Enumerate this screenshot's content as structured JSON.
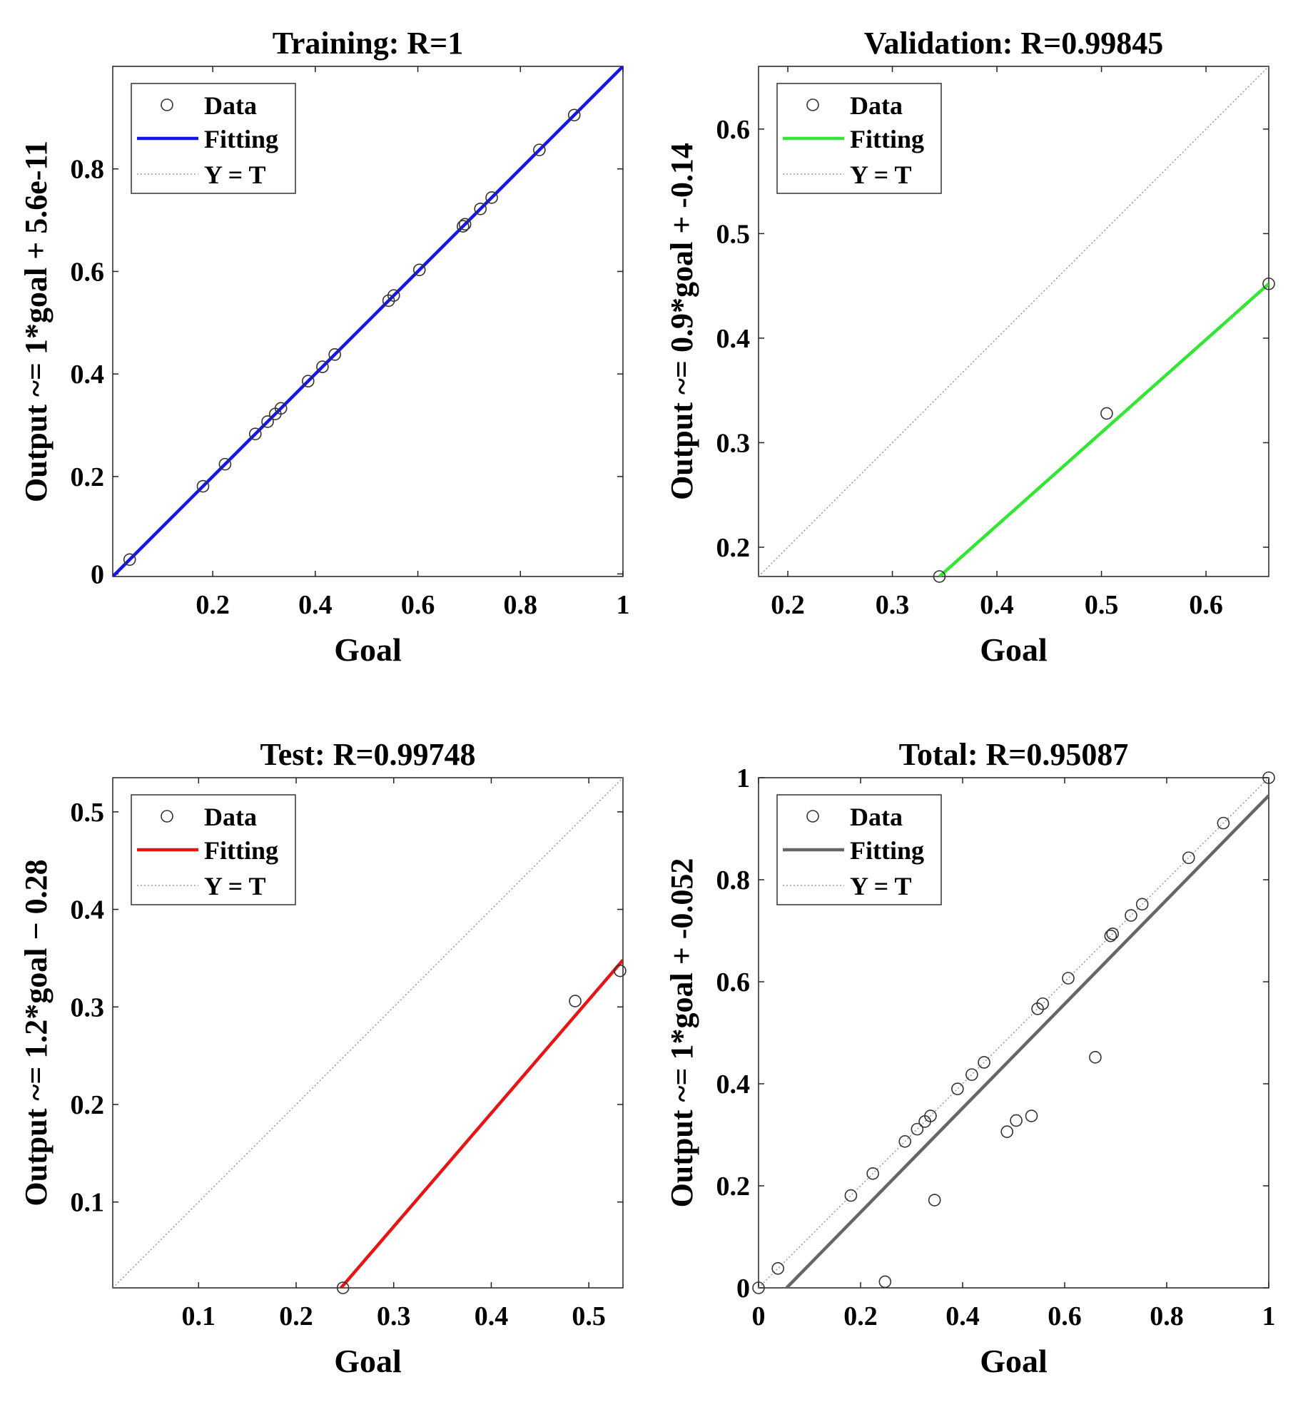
{
  "chart_data": [
    {
      "type": "scatter",
      "title": "Training: R=1",
      "xlabel": "Goal",
      "ylabel": "Output ~= 1*goal + 5.6e-11",
      "xlim": [
        0.005,
        1
      ],
      "ylim": [
        0.005,
        1
      ],
      "xticks": [
        0.2,
        0.4,
        0.6,
        0.8,
        1
      ],
      "xtick_labels": [
        "0.2",
        "0.4",
        "0.6",
        "0.8",
        "1"
      ],
      "yticks": [
        0.01,
        0.2,
        0.4,
        0.6,
        0.8
      ],
      "ytick_labels": [
        "0",
        "0.2",
        "0.4",
        "0.6",
        "0.8"
      ],
      "fit_color": "#1515e6",
      "fit_line": {
        "x": [
          0.005,
          1
        ],
        "y": [
          0.005,
          1
        ]
      },
      "reference_line": {
        "x": [
          0.005,
          1
        ],
        "y": [
          0.005,
          1
        ]
      },
      "points": {
        "x": [
          0.038,
          0.181,
          0.224,
          0.283,
          0.307,
          0.322,
          0.333,
          0.386,
          0.414,
          0.438,
          0.543,
          0.553,
          0.603,
          0.688,
          0.692,
          0.722,
          0.744,
          0.837,
          0.905
        ],
        "y": [
          0.038,
          0.181,
          0.224,
          0.283,
          0.307,
          0.322,
          0.333,
          0.386,
          0.414,
          0.438,
          0.543,
          0.553,
          0.603,
          0.688,
          0.692,
          0.722,
          0.744,
          0.837,
          0.905
        ]
      },
      "legend": {
        "placement": "top-left",
        "entries": [
          "Data",
          "Fitting",
          "Y = T"
        ]
      }
    },
    {
      "type": "scatter",
      "title": "Validation: R=0.99845",
      "xlabel": "Goal",
      "ylabel": "Output ~= 0.9*goal + -0.14",
      "xlim": [
        0.172,
        0.66
      ],
      "ylim": [
        0.172,
        0.66
      ],
      "xticks": [
        0.2,
        0.3,
        0.4,
        0.5,
        0.6
      ],
      "xtick_labels": [
        "0.2",
        "0.3",
        "0.4",
        "0.5",
        "0.6"
      ],
      "yticks": [
        0.2,
        0.3,
        0.4,
        0.5,
        0.6
      ],
      "ytick_labels": [
        "0.2",
        "0.3",
        "0.4",
        "0.5",
        "0.6"
      ],
      "fit_color": "#33e633",
      "fit_line": {
        "x": [
          0.345,
          0.66
        ],
        "y": [
          0.172,
          0.452
        ]
      },
      "reference_line": {
        "x": [
          0.172,
          0.66
        ],
        "y": [
          0.172,
          0.66
        ]
      },
      "points": {
        "x": [
          0.345,
          0.505,
          0.66
        ],
        "y": [
          0.172,
          0.328,
          0.452
        ]
      },
      "legend": {
        "placement": "top-left",
        "entries": [
          "Data",
          "Fitting",
          "Y = T"
        ]
      }
    },
    {
      "type": "scatter",
      "title": "Test: R=0.99748",
      "xlabel": "Goal",
      "ylabel": "Output ~= 1.2*goal − 0.28",
      "xlim": [
        0.012,
        0.535
      ],
      "ylim": [
        0.012,
        0.535
      ],
      "xticks": [
        0.1,
        0.2,
        0.3,
        0.4,
        0.5
      ],
      "xtick_labels": [
        "0.1",
        "0.2",
        "0.3",
        "0.4",
        "0.5"
      ],
      "yticks": [
        0.1,
        0.2,
        0.3,
        0.4,
        0.5
      ],
      "ytick_labels": [
        "0.1",
        "0.2",
        "0.3",
        "0.4",
        "0.5"
      ],
      "fit_color": "#e61515",
      "fit_line": {
        "x": [
          0.246,
          0.535
        ],
        "y": [
          0.012,
          0.348
        ]
      },
      "reference_line": {
        "x": [
          0.012,
          0.535
        ],
        "y": [
          0.012,
          0.535
        ]
      },
      "points": {
        "x": [
          0.248,
          0.486,
          0.532
        ],
        "y": [
          0.012,
          0.306,
          0.337
        ]
      },
      "legend": {
        "placement": "top-left",
        "entries": [
          "Data",
          "Fitting",
          "Y = T"
        ]
      }
    },
    {
      "type": "scatter",
      "title": "Total: R=0.95087",
      "xlabel": "Goal",
      "ylabel": "Output ~= 1*goal + -0.052",
      "xlim": [
        0,
        1
      ],
      "ylim": [
        0,
        1
      ],
      "xticks": [
        0,
        0.2,
        0.4,
        0.6,
        0.8,
        1
      ],
      "xtick_labels": [
        "0",
        "0.2",
        "0.4",
        "0.6",
        "0.8",
        "1"
      ],
      "yticks": [
        0,
        0.2,
        0.4,
        0.6,
        0.8,
        1
      ],
      "ytick_labels": [
        "0",
        "0.2",
        "0.4",
        "0.6",
        "0.8",
        "1"
      ],
      "fit_color": "#666666",
      "fit_line": {
        "x": [
          0.055,
          1
        ],
        "y": [
          0,
          0.965
        ]
      },
      "reference_line": {
        "x": [
          0,
          1
        ],
        "y": [
          0,
          1
        ]
      },
      "points": {
        "x": [
          0,
          0.038,
          0.181,
          0.224,
          0.248,
          0.287,
          0.311,
          0.326,
          0.337,
          0.345,
          0.39,
          0.418,
          0.442,
          0.487,
          0.505,
          0.535,
          0.547,
          0.557,
          0.607,
          0.66,
          0.69,
          0.694,
          0.73,
          0.752,
          0.843,
          0.911,
          1.0
        ],
        "y": [
          0,
          0.038,
          0.181,
          0.224,
          0.012,
          0.287,
          0.311,
          0.326,
          0.337,
          0.172,
          0.39,
          0.418,
          0.442,
          0.306,
          0.328,
          0.337,
          0.547,
          0.557,
          0.607,
          0.452,
          0.69,
          0.694,
          0.73,
          0.752,
          0.843,
          0.911,
          1.0
        ]
      },
      "legend": {
        "placement": "top-left",
        "entries": [
          "Data",
          "Fitting",
          "Y = T"
        ]
      }
    }
  ]
}
